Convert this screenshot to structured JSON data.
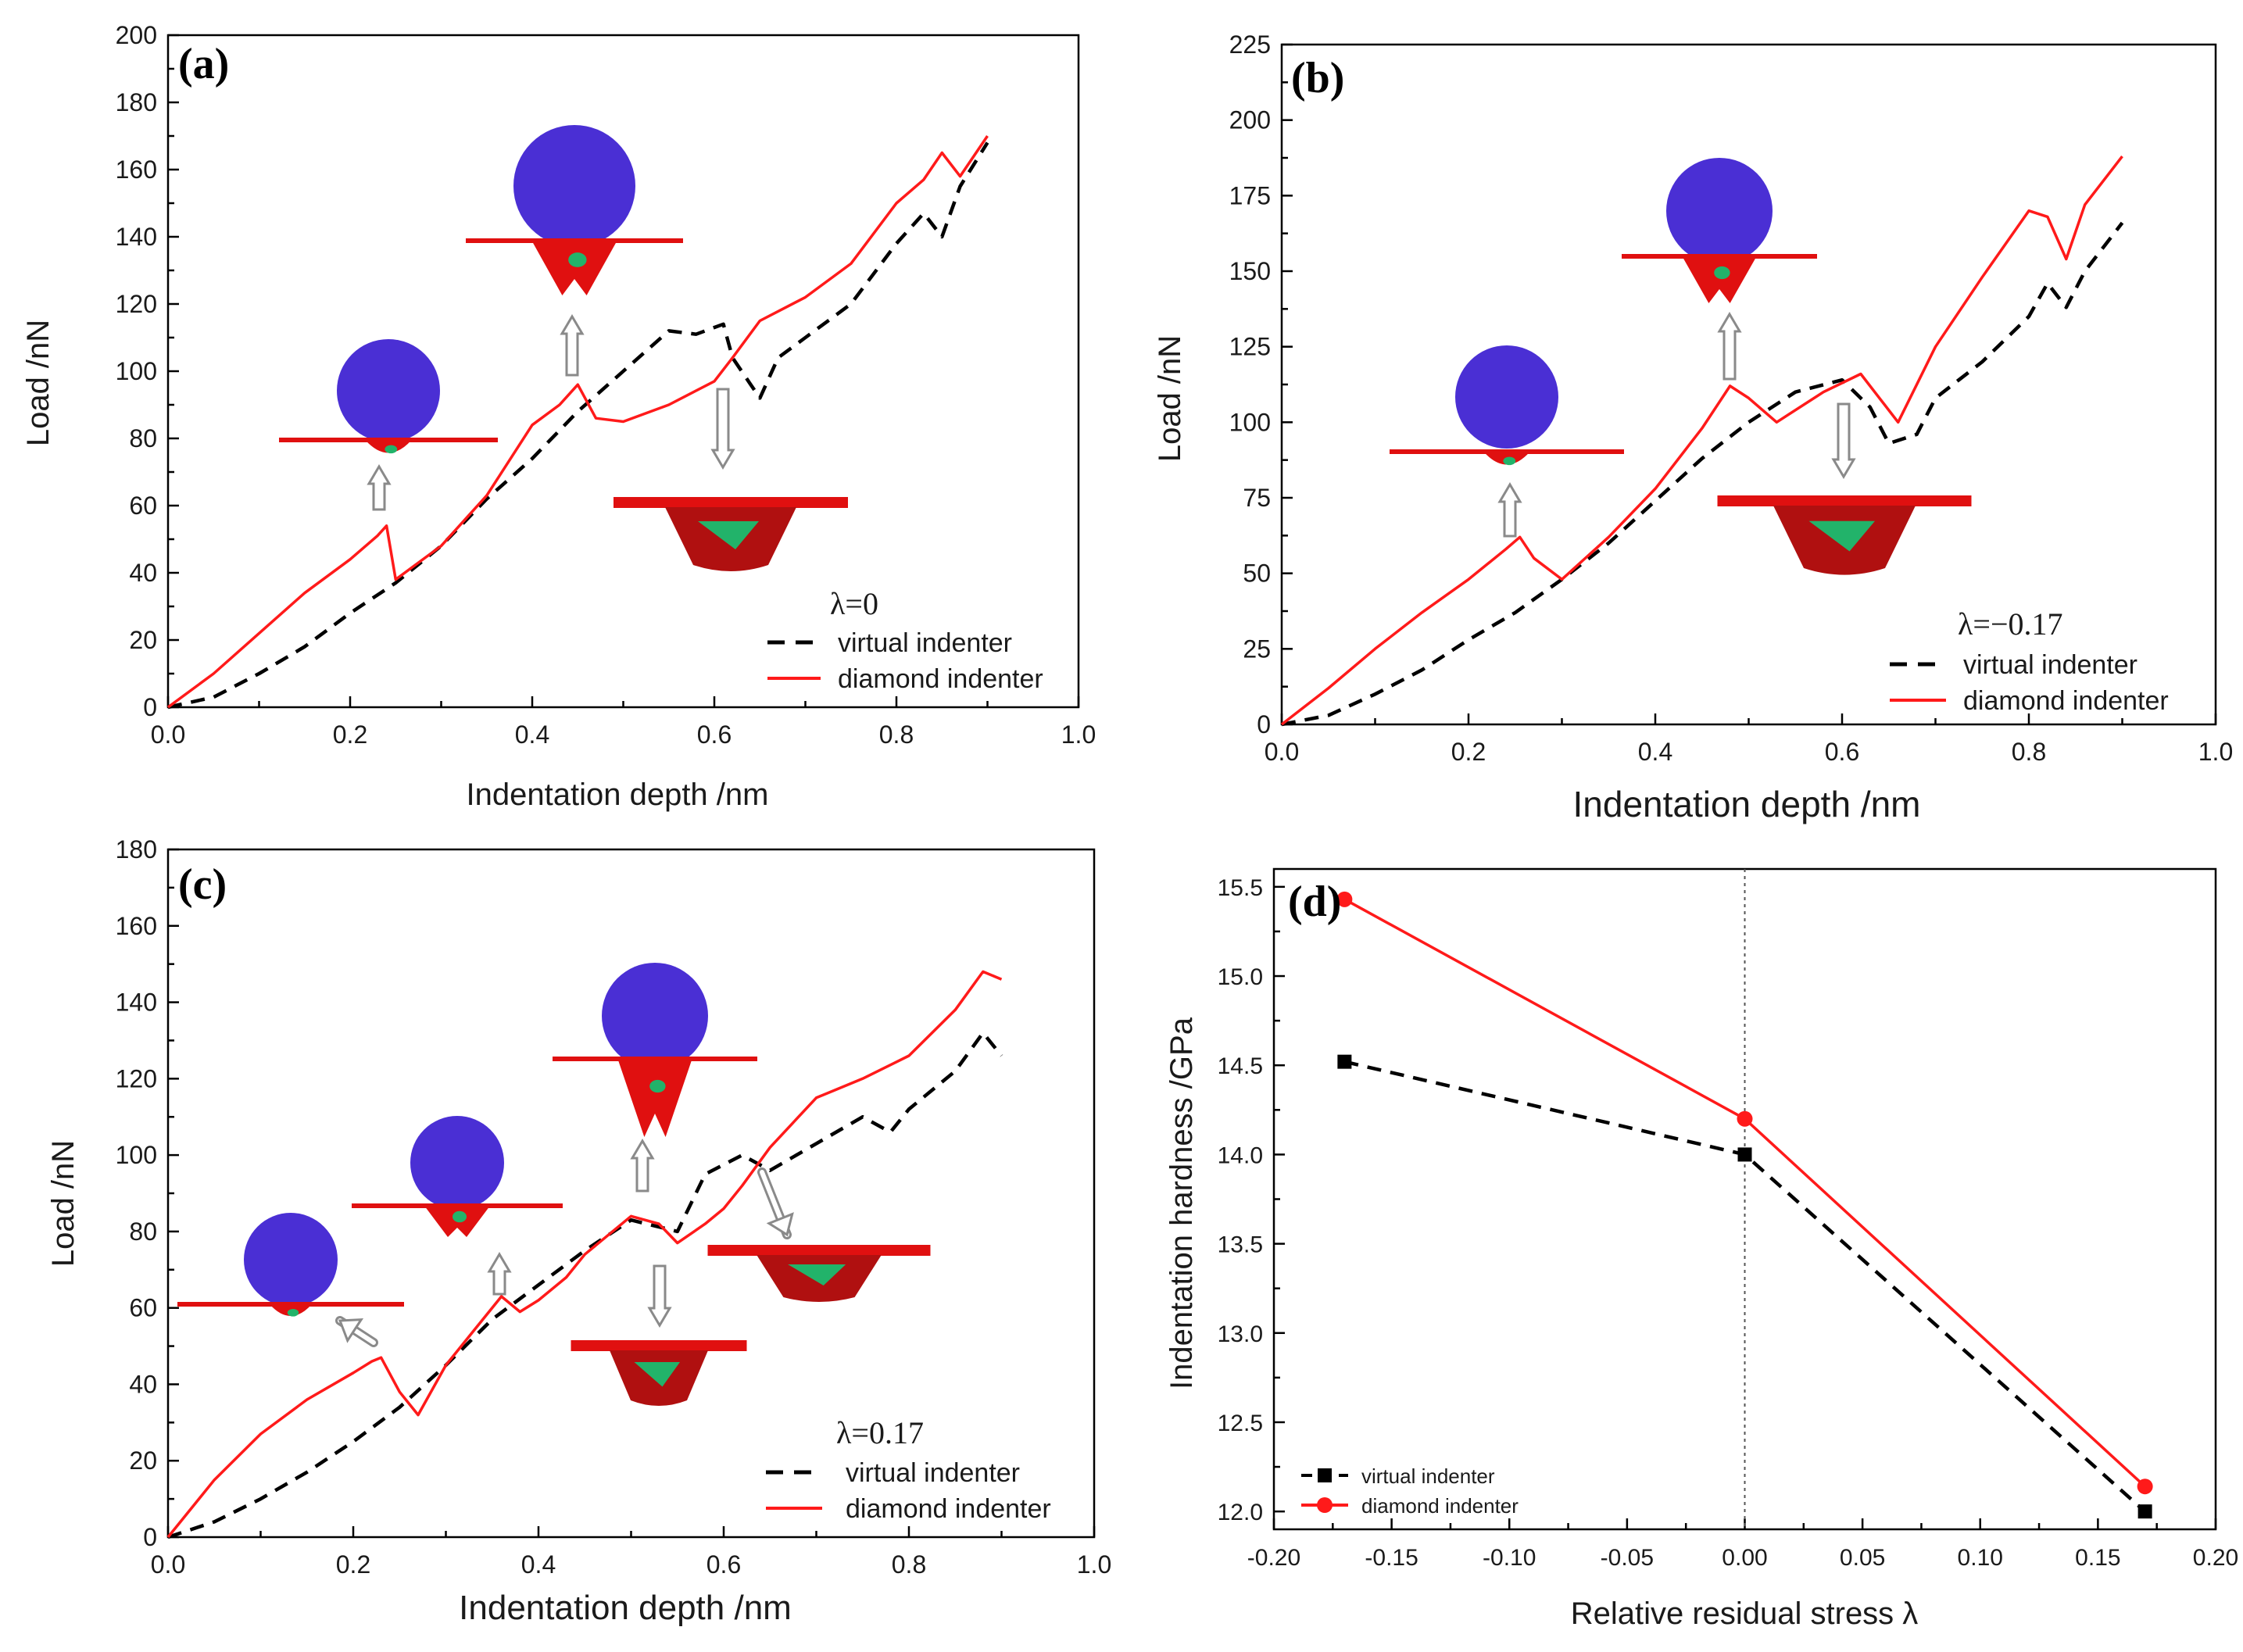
{
  "colors": {
    "virtual": "#000000",
    "diamond": "#ff1a1a",
    "sphere": "#4a2fd4",
    "substrate": "#e01010",
    "defect": "#22b36a",
    "frame": "#000000"
  },
  "icons": [
    "indenter-sphere-icon",
    "indented-substrate-icon",
    "arrow-icon"
  ],
  "chart_data": [
    {
      "type": "line",
      "panel": "(a)",
      "lambda_label": "λ=0",
      "xlabel": "Indentation depth   /nm",
      "ylabel": "Load   /nN",
      "xlim": [
        0,
        1.0
      ],
      "ylim": [
        0,
        200
      ],
      "xticks": [
        "0.0",
        "0.2",
        "0.4",
        "0.6",
        "0.8",
        "1.0"
      ],
      "yticks": [
        "0",
        "20",
        "40",
        "60",
        "80",
        "100",
        "120",
        "140",
        "160",
        "180",
        "200"
      ],
      "legend": [
        "virtual indenter",
        "diamond indenter"
      ],
      "series": [
        {
          "name": "virtual indenter",
          "style": "dashed",
          "x": [
            0,
            0.05,
            0.1,
            0.15,
            0.2,
            0.25,
            0.3,
            0.35,
            0.4,
            0.45,
            0.5,
            0.55,
            0.58,
            0.61,
            0.62,
            0.64,
            0.65,
            0.67,
            0.7,
            0.75,
            0.8,
            0.83,
            0.85,
            0.87,
            0.9
          ],
          "y": [
            0,
            3,
            10,
            18,
            28,
            37,
            48,
            62,
            74,
            88,
            100,
            112,
            111,
            114,
            104,
            96,
            92,
            104,
            110,
            120,
            138,
            147,
            140,
            155,
            168
          ]
        },
        {
          "name": "diamond indenter",
          "style": "solid",
          "x": [
            0,
            0.05,
            0.1,
            0.15,
            0.2,
            0.23,
            0.24,
            0.25,
            0.27,
            0.3,
            0.35,
            0.4,
            0.43,
            0.45,
            0.47,
            0.5,
            0.55,
            0.6,
            0.62,
            0.65,
            0.7,
            0.75,
            0.8,
            0.83,
            0.85,
            0.87,
            0.9
          ],
          "y": [
            0,
            10,
            22,
            34,
            44,
            51,
            54,
            38,
            42,
            48,
            63,
            84,
            90,
            96,
            86,
            85,
            90,
            97,
            104,
            115,
            122,
            132,
            150,
            157,
            165,
            158,
            170
          ]
        }
      ],
      "insets": [
        {
          "kind": "sphere-on-surface",
          "depth_x": 0.23
        },
        {
          "kind": "sphere-embedded",
          "depth_x": 0.44
        },
        {
          "kind": "residual-imprint",
          "depth_x": 0.6
        }
      ]
    },
    {
      "type": "line",
      "panel": "(b)",
      "lambda_label": "λ=−0.17",
      "xlabel": "Indentation depth   /nm",
      "ylabel": "Load   /nN",
      "xlim": [
        0,
        1.0
      ],
      "ylim": [
        0,
        225
      ],
      "xticks": [
        "0.0",
        "0.2",
        "0.4",
        "0.6",
        "0.8",
        "1.0"
      ],
      "yticks": [
        "0",
        "25",
        "50",
        "75",
        "100",
        "125",
        "150",
        "175",
        "200",
        "225"
      ],
      "legend": [
        "virtual indenter",
        "diamond indenter"
      ],
      "series": [
        {
          "name": "virtual indenter",
          "style": "dashed",
          "x": [
            0,
            0.05,
            0.1,
            0.15,
            0.2,
            0.25,
            0.3,
            0.35,
            0.4,
            0.45,
            0.5,
            0.55,
            0.6,
            0.63,
            0.65,
            0.68,
            0.7,
            0.75,
            0.8,
            0.82,
            0.84,
            0.86,
            0.9
          ],
          "y": [
            0,
            3,
            10,
            18,
            28,
            37,
            48,
            60,
            74,
            88,
            100,
            110,
            114,
            105,
            93,
            96,
            108,
            120,
            135,
            146,
            138,
            150,
            166
          ]
        },
        {
          "name": "diamond indenter",
          "style": "solid",
          "x": [
            0,
            0.05,
            0.1,
            0.15,
            0.2,
            0.24,
            0.255,
            0.27,
            0.3,
            0.35,
            0.4,
            0.45,
            0.48,
            0.5,
            0.53,
            0.58,
            0.62,
            0.64,
            0.66,
            0.7,
            0.75,
            0.8,
            0.82,
            0.84,
            0.86,
            0.9
          ],
          "y": [
            0,
            12,
            25,
            37,
            48,
            58,
            62,
            55,
            48,
            62,
            78,
            98,
            112,
            108,
            100,
            110,
            116,
            108,
            100,
            125,
            148,
            170,
            168,
            154,
            172,
            188
          ]
        }
      ],
      "insets": [
        {
          "kind": "sphere-on-surface",
          "depth_x": 0.25
        },
        {
          "kind": "sphere-embedded",
          "depth_x": 0.48
        },
        {
          "kind": "residual-imprint",
          "depth_x": 0.61
        }
      ]
    },
    {
      "type": "line",
      "panel": "(c)",
      "lambda_label": "λ=0.17",
      "xlabel": "Indentation depth   /nm",
      "ylabel": "Load   /nN",
      "xlim": [
        0,
        1.0
      ],
      "ylim": [
        0,
        180
      ],
      "xticks": [
        "0.0",
        "0.2",
        "0.4",
        "0.6",
        "0.8",
        "1.0"
      ],
      "yticks": [
        "0",
        "20",
        "40",
        "60",
        "80",
        "100",
        "120",
        "140",
        "160",
        "180"
      ],
      "legend": [
        "virtual indenter",
        "diamond indenter"
      ],
      "series": [
        {
          "name": "virtual indenter",
          "style": "dashed",
          "x": [
            0,
            0.05,
            0.1,
            0.15,
            0.2,
            0.25,
            0.3,
            0.35,
            0.4,
            0.45,
            0.5,
            0.55,
            0.58,
            0.62,
            0.65,
            0.7,
            0.75,
            0.78,
            0.8,
            0.85,
            0.88,
            0.9
          ],
          "y": [
            0,
            4,
            10,
            17,
            25,
            34,
            45,
            57,
            66,
            75,
            83,
            80,
            95,
            100,
            96,
            103,
            110,
            106,
            112,
            122,
            132,
            126
          ]
        },
        {
          "name": "diamond indenter",
          "style": "solid",
          "x": [
            0,
            0.05,
            0.1,
            0.15,
            0.2,
            0.22,
            0.23,
            0.25,
            0.27,
            0.3,
            0.33,
            0.36,
            0.38,
            0.4,
            0.43,
            0.45,
            0.5,
            0.53,
            0.55,
            0.58,
            0.6,
            0.62,
            0.65,
            0.7,
            0.75,
            0.8,
            0.85,
            0.88,
            0.9
          ],
          "y": [
            0,
            15,
            27,
            36,
            43,
            46,
            47,
            38,
            32,
            45,
            54,
            63,
            59,
            62,
            68,
            74,
            84,
            82,
            77,
            82,
            86,
            92,
            102,
            115,
            120,
            126,
            138,
            148,
            146
          ]
        }
      ],
      "insets": [
        {
          "kind": "sphere-on-surface",
          "depth_x": 0.22
        },
        {
          "kind": "sphere-embedded",
          "depth_x": 0.36
        },
        {
          "kind": "sphere-deep",
          "depth_x": 0.51
        },
        {
          "kind": "residual-imprint",
          "depth_x": 0.53
        },
        {
          "kind": "residual-imprint-wide",
          "depth_x": 0.66
        }
      ]
    },
    {
      "type": "line",
      "panel": "(d)",
      "xlabel": "Relative residual stress  λ",
      "ylabel": "Indentation hardness   /GPa",
      "xlim": [
        -0.2,
        0.2
      ],
      "ylim": [
        11.9,
        15.6
      ],
      "xticks": [
        "-0.20",
        "-0.15",
        "-0.10",
        "-0.05",
        "0.00",
        "0.05",
        "0.10",
        "0.15",
        "0.20"
      ],
      "yticks": [
        "12.0",
        "12.5",
        "13.0",
        "13.5",
        "14.0",
        "14.5",
        "15.0",
        "15.5"
      ],
      "reference_line_x": 0.0,
      "legend": [
        "virtual indenter",
        "diamond indenter"
      ],
      "series": [
        {
          "name": "virtual indenter",
          "style": "dashed",
          "marker": "square",
          "x": [
            -0.17,
            0.0,
            0.17
          ],
          "y": [
            14.52,
            14.0,
            12.0
          ]
        },
        {
          "name": "diamond indenter",
          "style": "solid",
          "marker": "circle",
          "x": [
            -0.17,
            0.0,
            0.17
          ],
          "y": [
            15.43,
            14.2,
            12.14
          ]
        }
      ]
    }
  ]
}
